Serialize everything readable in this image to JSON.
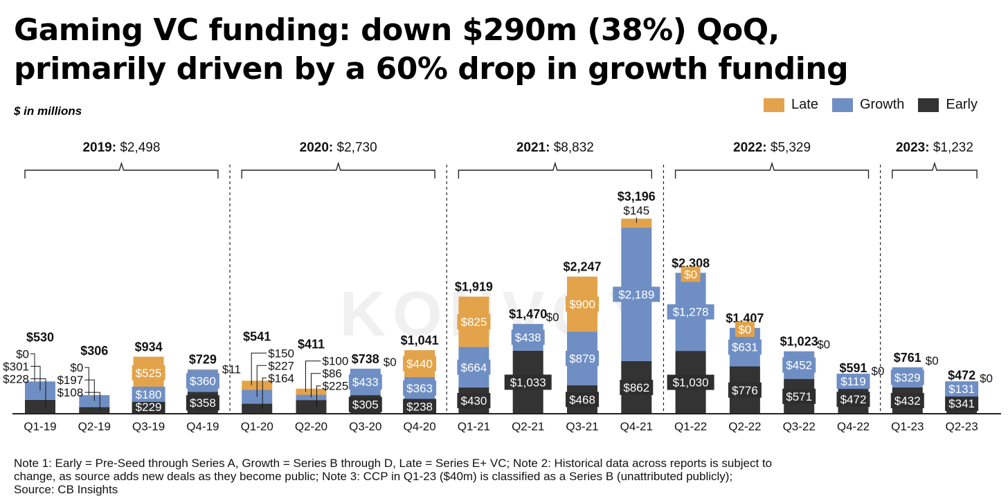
{
  "title_lines": [
    "Gaming VC funding: down $290m (38%) QoQ,",
    "primarily driven by a 60% drop in growth funding"
  ],
  "subtitle": "$ in millions",
  "legend": [
    {
      "name": "Late",
      "color": "#E3A34A"
    },
    {
      "name": "Growth",
      "color": "#6F8FC4"
    },
    {
      "name": "Early",
      "color": "#333333"
    }
  ],
  "watermark": "KONVOY",
  "chart_data": {
    "type": "bar",
    "stacked": true,
    "categories": [
      "Q1-19",
      "Q2-19",
      "Q3-19",
      "Q4-19",
      "Q1-20",
      "Q2-20",
      "Q3-20",
      "Q4-20",
      "Q1-21",
      "Q2-21",
      "Q3-21",
      "Q4-21",
      "Q1-22",
      "Q2-22",
      "Q3-22",
      "Q4-22",
      "Q1-23",
      "Q2-23"
    ],
    "series": [
      {
        "name": "Early",
        "color": "#333333",
        "values": [
          228,
          108,
          229,
          358,
          164,
          225,
          305,
          238,
          430,
          1033,
          468,
          862,
          1030,
          776,
          571,
          472,
          432,
          341
        ]
      },
      {
        "name": "Growth",
        "color": "#6F8FC4",
        "values": [
          301,
          197,
          180,
          360,
          227,
          86,
          433,
          363,
          664,
          438,
          879,
          2189,
          1278,
          631,
          452,
          119,
          329,
          131
        ]
      },
      {
        "name": "Late",
        "color": "#E3A34A",
        "values": [
          0,
          0,
          525,
          11,
          150,
          100,
          0,
          440,
          825,
          0,
          900,
          145,
          0,
          0,
          0,
          0,
          0,
          0
        ]
      }
    ],
    "totals": [
      "$530",
      "$306",
      "$934",
      "$729",
      "$541",
      "$411",
      "$738",
      "$1,041",
      "$1,919",
      "$1,470",
      "$2,247",
      "$3,196",
      "$2,308",
      "$1,407",
      "$1,023",
      "$591",
      "$761",
      "$472"
    ],
    "ylim": [
      0,
      3196
    ],
    "groups": [
      {
        "year": "2019:",
        "total": "$2,498",
        "start": 0,
        "end": 3
      },
      {
        "year": "2020:",
        "total": "$2,730",
        "start": 4,
        "end": 7
      },
      {
        "year": "2021:",
        "total": "$8,832",
        "start": 8,
        "end": 11
      },
      {
        "year": "2022:",
        "total": "$5,329",
        "start": 12,
        "end": 15
      },
      {
        "year": "2023:",
        "total": "$1,232",
        "start": 16,
        "end": 17
      }
    ]
  },
  "notes": [
    "Note 1: Early = Pre-Seed through Series A, Growth = Series B through D, Late = Series E+ VC; Note 2: Historical data across reports is subject to",
    "change, as source adds new deals as they become public; Note 3: CCP in Q1-23 ($40m) is classified as a Series B (unattributed publicly);",
    "Source: CB Insights"
  ]
}
